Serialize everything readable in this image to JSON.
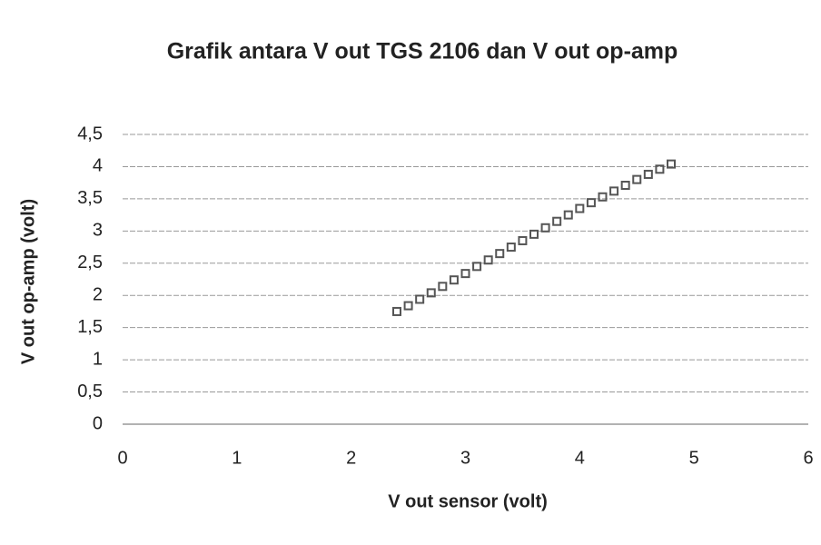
{
  "chart_data": {
    "type": "scatter",
    "title": "Grafik antara V out TGS 2106 dan V out op-amp",
    "xlabel": "V out sensor (volt)",
    "ylabel": "V out op-amp (volt)",
    "x": [
      2.4,
      2.5,
      2.6,
      2.7,
      2.8,
      2.9,
      3.0,
      3.1,
      3.2,
      3.3,
      3.4,
      3.5,
      3.6,
      3.7,
      3.8,
      3.9,
      4.0,
      4.1,
      4.2,
      4.3,
      4.4,
      4.5,
      4.6,
      4.7,
      4.8
    ],
    "values": [
      1.75,
      1.84,
      1.94,
      2.04,
      2.14,
      2.24,
      2.34,
      2.45,
      2.55,
      2.65,
      2.75,
      2.85,
      2.95,
      3.05,
      3.15,
      3.25,
      3.35,
      3.44,
      3.53,
      3.62,
      3.71,
      3.8,
      3.88,
      3.96,
      4.04
    ],
    "color": "#555555",
    "xlim": [
      0,
      6
    ],
    "xticks": [
      0,
      1,
      2,
      3,
      4,
      5,
      6
    ],
    "ylim": [
      0,
      4.5
    ],
    "yticks": [
      0,
      {
        "value": 0.5,
        "label": "0,5"
      },
      1,
      {
        "value": 1.5,
        "label": "1,5"
      },
      2,
      {
        "value": 2.5,
        "label": "2,5"
      },
      3,
      {
        "value": 3.5,
        "label": "3,5"
      },
      4,
      {
        "value": 4.5,
        "label": "4,5"
      }
    ],
    "grid": true
  }
}
